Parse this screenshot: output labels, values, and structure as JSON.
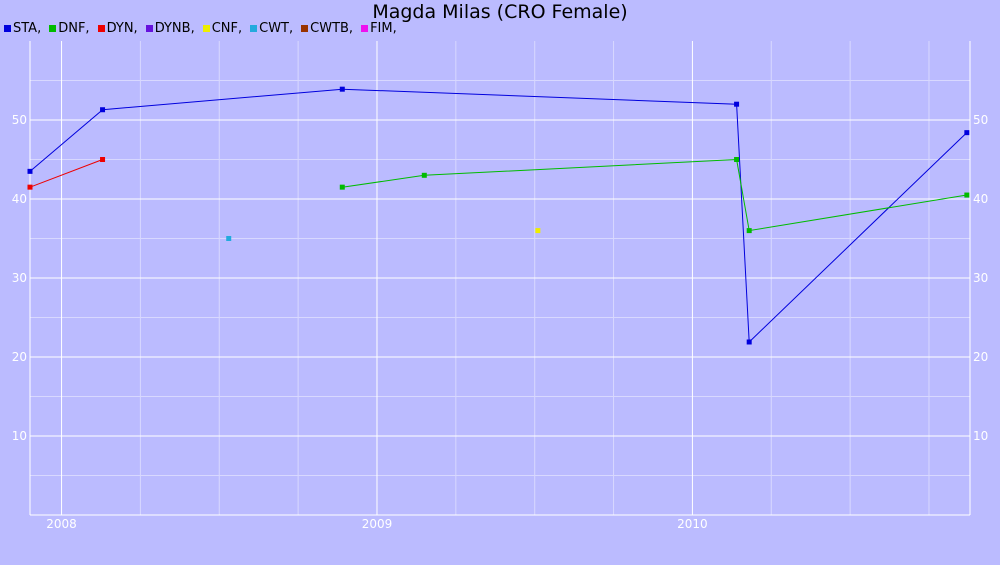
{
  "chart_data": {
    "type": "line",
    "title": "Magda Milas (CRO Female)",
    "xlabel": "",
    "ylabel": "",
    "x_range": [
      2007.9,
      2010.88
    ],
    "ylim": [
      0,
      60
    ],
    "y_ticks": [
      10,
      20,
      30,
      40,
      50
    ],
    "x_ticks": [
      {
        "value": 2008,
        "label": "2008"
      },
      {
        "value": 2009,
        "label": "2009"
      },
      {
        "value": 2010,
        "label": "2010"
      }
    ],
    "grid": true,
    "legend_position": "top-left",
    "series": [
      {
        "name": "STA",
        "color": "#0000dd",
        "points": [
          [
            2007.9,
            43.5
          ],
          [
            2008.13,
            51.3
          ],
          [
            2008.89,
            53.9
          ],
          [
            2010.14,
            52
          ],
          [
            2010.18,
            21.9
          ],
          [
            2010.87,
            48.4
          ]
        ]
      },
      {
        "name": "DNF",
        "color": "#00bb00",
        "points": [
          [
            2008.89,
            41.5
          ],
          [
            2009.15,
            43
          ],
          [
            2010.14,
            45
          ],
          [
            2010.18,
            36
          ],
          [
            2010.87,
            40.5
          ]
        ]
      },
      {
        "name": "DYN",
        "color": "#ee0000",
        "points": [
          [
            2007.9,
            41.5
          ],
          [
            2008.13,
            45
          ]
        ]
      },
      {
        "name": "DYNB",
        "color": "#6611dd",
        "points": []
      },
      {
        "name": "CNF",
        "color": "#eeee00",
        "points": [
          [
            2009.51,
            36
          ]
        ]
      },
      {
        "name": "CWT",
        "color": "#22aadd",
        "points": [
          [
            2008.53,
            35
          ]
        ]
      },
      {
        "name": "CWTB",
        "color": "#993300",
        "points": []
      },
      {
        "name": "FIM",
        "color": "#ee11ee",
        "points": []
      }
    ]
  }
}
